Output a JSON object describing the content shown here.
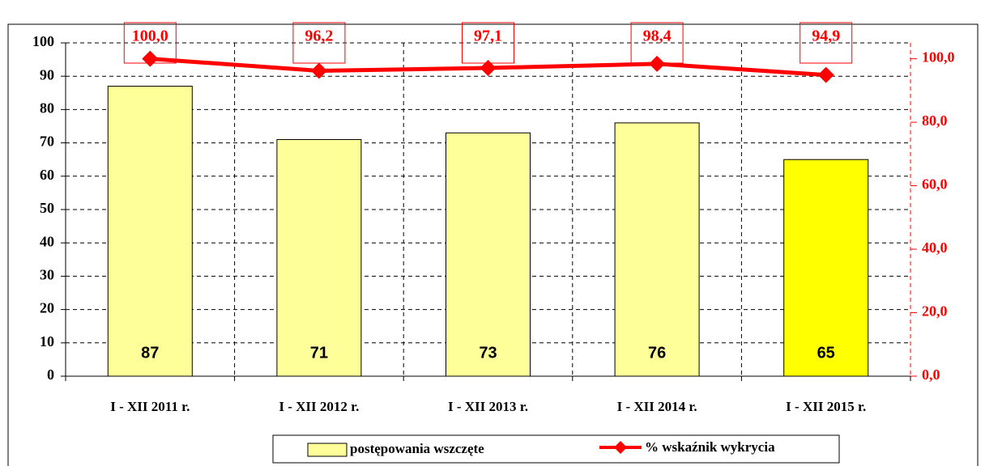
{
  "chart_data": {
    "type": "bar",
    "categories": [
      "I - XII 2011 r.",
      "I - XII 2012 r.",
      "I - XII 2013 r.",
      "I - XII 2014 r.",
      "I - XII 2015 r."
    ],
    "series": [
      {
        "name": "postępowania wszczęte",
        "type": "bar",
        "colors": [
          "#ffff99",
          "#ffff99",
          "#ffff99",
          "#ffff99",
          "#ffff00"
        ],
        "values": [
          87,
          71,
          73,
          76,
          65
        ]
      },
      {
        "name": "% wskaźnik wykrycia",
        "type": "line",
        "axis": "y2",
        "color": "#ff0000",
        "values": [
          100,
          96.2,
          97.1,
          98.4,
          94.9
        ],
        "value_labels": [
          "100,0",
          "96,2",
          "97,1",
          "98,4",
          "94,9"
        ]
      }
    ],
    "ylim": [
      0,
      100
    ],
    "yticks": [
      0,
      10,
      20,
      30,
      40,
      50,
      60,
      70,
      80,
      90,
      100
    ],
    "y2lim": [
      0,
      105
    ],
    "y2ticks": [
      {
        "value": 0,
        "label": "0,0"
      },
      {
        "value": 20,
        "label": "20,0"
      },
      {
        "value": 40,
        "label": "40,0"
      },
      {
        "value": 60,
        "label": "60,0"
      },
      {
        "value": 80,
        "label": "80,0"
      },
      {
        "value": 100,
        "label": "100,0"
      }
    ],
    "grid": true,
    "legend": "bottom"
  }
}
